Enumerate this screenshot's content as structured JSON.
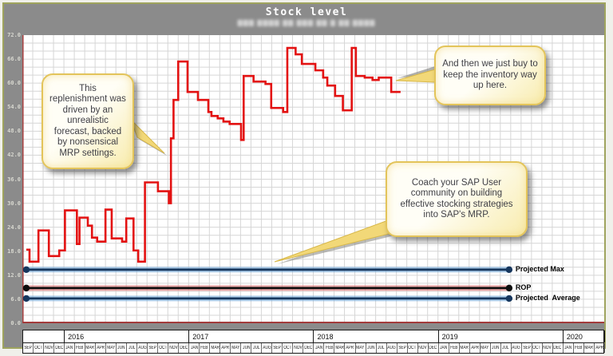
{
  "header": {
    "title": "Stock level",
    "subtitle_masked": "▇▇▇ ▇▇▇▇ ▇▇ ▇▇▇ ▇▇ ▇ ▇▇ ▇▇▇▇"
  },
  "colors": {
    "frame_border": "#9fa45e",
    "chart_surround": "#8b8b8b",
    "plot_background": "#ffffff",
    "gridline": "#d6d6d6",
    "axis_red": "#a33b3b",
    "series_red": "#e31212",
    "blue_core": "#17375e",
    "blue_glow": "#6fa8dc",
    "rop_core": "#0d0d0d",
    "rop_glow": "#e06666",
    "callout_fill": "#fffdf0",
    "callout_border": "#e3c45a"
  },
  "callouts": [
    {
      "text": "This replenishment was driven by an unrealistic forecast, backed by nonsensical MRP settings."
    },
    {
      "text": "And then we just buy to keep the inventory way up here."
    },
    {
      "text": "Coach your SAP User community on building effective stocking strategies into SAP's MRP."
    }
  ],
  "chart_data": {
    "type": "line",
    "step": true,
    "title": "Stock level",
    "ylim": [
      0,
      72
    ],
    "ytick_step": 6,
    "yticks": [
      "72.0",
      "66.0",
      "60.0",
      "54.0",
      "48.0",
      "42.0",
      "36.0",
      "30.0",
      "24.0",
      "18.0",
      "12.0",
      "6.0",
      "0.0"
    ],
    "grid": {
      "vertical_every_months": 1,
      "horizontal_every_units": 2
    },
    "x_start": "SEP 2015",
    "x_end": "APR 2020",
    "series": [
      {
        "name": "Stock level",
        "kind": "step",
        "color": "#e31212",
        "points": [
          [
            0.38,
            18.4
          ],
          [
            0.69,
            15.4
          ],
          [
            1.55,
            23.2
          ],
          [
            2.55,
            16.8
          ],
          [
            3.55,
            18.2
          ],
          [
            4.1,
            28.2
          ],
          [
            5.25,
            19.8
          ],
          [
            5.5,
            26.4
          ],
          [
            6.3,
            24.4
          ],
          [
            6.7,
            21.4
          ],
          [
            7.2,
            20.4
          ],
          [
            8.0,
            28.4
          ],
          [
            8.6,
            21.2
          ],
          [
            9.6,
            20.4
          ],
          [
            10.0,
            26.2
          ],
          [
            10.7,
            18.2
          ],
          [
            11.15,
            15.4
          ],
          [
            11.8,
            35.2
          ],
          [
            13.05,
            33.0
          ],
          [
            14.1,
            30.0
          ],
          [
            14.3,
            46.2
          ],
          [
            14.55,
            55.8
          ],
          [
            15.0,
            65.4
          ],
          [
            15.9,
            57.8
          ],
          [
            16.9,
            55.8
          ],
          [
            17.9,
            52.8
          ],
          [
            18.2,
            51.8
          ],
          [
            18.8,
            51.2
          ],
          [
            19.35,
            50.4
          ],
          [
            19.95,
            49.8
          ],
          [
            21.05,
            45.8
          ],
          [
            21.3,
            61.8
          ],
          [
            22.25,
            60.4
          ],
          [
            23.4,
            59.8
          ],
          [
            23.95,
            53.8
          ],
          [
            25.1,
            52.8
          ],
          [
            25.5,
            68.8
          ],
          [
            26.3,
            67.2
          ],
          [
            26.9,
            64.8
          ],
          [
            28.2,
            63.2
          ],
          [
            28.95,
            61.4
          ],
          [
            29.35,
            59.4
          ],
          [
            30.1,
            56.8
          ],
          [
            30.85,
            53.2
          ],
          [
            31.7,
            68.8
          ],
          [
            32.1,
            61.8
          ],
          [
            32.95,
            61.4
          ],
          [
            33.7,
            60.8
          ],
          [
            34.3,
            61.4
          ],
          [
            35.5,
            57.8
          ]
        ],
        "end_t": 36.4
      },
      {
        "name": "Projected Max",
        "kind": "hline",
        "value": 13.4,
        "core": "#17375e",
        "glow": "#6fa8dc",
        "t_range": [
          0.38,
          46.85
        ]
      },
      {
        "name": "ROP",
        "kind": "hline",
        "value": 8.8,
        "core": "#0d0d0d",
        "glow": "#e06666",
        "t_range": [
          0.38,
          46.85
        ]
      },
      {
        "name": "Projected  Average",
        "kind": "hline",
        "value": 6.2,
        "core": "#17375e",
        "glow": "#6fa8dc",
        "t_range": [
          0.38,
          46.85
        ]
      }
    ],
    "timeline": {
      "years": [
        {
          "label": "",
          "months": [
            "SEP",
            "OCT",
            "NOV",
            "DEC"
          ]
        },
        {
          "label": "2016",
          "months": [
            "JAN",
            "FEB",
            "MAR",
            "APR",
            "MAY",
            "JUN",
            "JUL",
            "AUG",
            "SEP",
            "OCT",
            "NOV",
            "DEC"
          ]
        },
        {
          "label": "2017",
          "months": [
            "JAN",
            "FEB",
            "MAR",
            "APR",
            "MAY",
            "JUN",
            "JUL",
            "AUG",
            "SEP",
            "OCT",
            "NOV",
            "DEC"
          ]
        },
        {
          "label": "2018",
          "months": [
            "JAN",
            "FEB",
            "MAR",
            "APR",
            "MAY",
            "JUN",
            "JUL",
            "AUG",
            "SEP",
            "OCT",
            "NOV",
            "DEC"
          ]
        },
        {
          "label": "2019",
          "months": [
            "JAN",
            "FEB",
            "MAR",
            "APR",
            "MAY",
            "JUN",
            "JUL",
            "AUG",
            "SEP",
            "OCT",
            "NOV",
            "DEC"
          ]
        },
        {
          "label": "2020",
          "months": [
            "JAN",
            "FEB",
            "MAR",
            "APR"
          ]
        }
      ]
    }
  }
}
